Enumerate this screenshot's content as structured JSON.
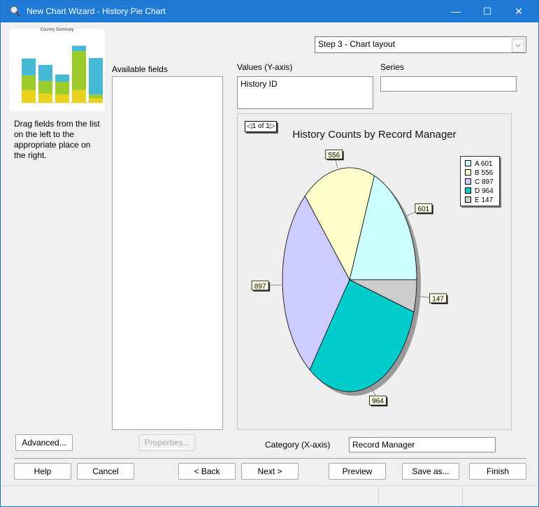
{
  "window": {
    "title": "New Chart Wizard - History Pie Chart",
    "controls": {
      "minimize": "—",
      "maximize": "☐",
      "close": "✕"
    }
  },
  "thumbnail": {
    "title": "Country Summary",
    "stacks": [
      [
        0.28,
        0.32,
        0.37
      ],
      [
        0.2,
        0.28,
        0.35
      ],
      [
        0.18,
        0.28,
        0.16
      ],
      [
        0.28,
        0.85,
        0.12
      ],
      [
        0.1,
        0.08,
        0.8
      ]
    ]
  },
  "instructions": "Drag fields from the list on the left to the appropriate place on the right.",
  "step_select": {
    "value": "Step 3 - Chart layout"
  },
  "available_fields": {
    "label": "Available fields",
    "items": []
  },
  "values_axis": {
    "label": "Values (Y-axis)",
    "value": "History ID"
  },
  "series": {
    "label": "Series",
    "value": ""
  },
  "category_axis": {
    "label": "Category (X-axis)",
    "value": "Record Manager"
  },
  "chart_data": {
    "type": "pie",
    "title": "History Counts by Record Manager",
    "pager": "1 of 1",
    "categories": [
      "A",
      "B",
      "C",
      "D",
      "E"
    ],
    "values": [
      601,
      556,
      897,
      964,
      147
    ],
    "colors": [
      "#ccffff",
      "#ffffcc",
      "#ccccff",
      "#00cccc",
      "#cccccc"
    ],
    "legend_position": "top-right"
  },
  "buttons": {
    "advanced": "Advanced...",
    "properties": "Properties...",
    "help": "Help",
    "cancel": "Cancel",
    "back": "< Back",
    "next": "Next >",
    "preview": "Preview",
    "save_as": "Save as...",
    "finish": "Finish"
  }
}
